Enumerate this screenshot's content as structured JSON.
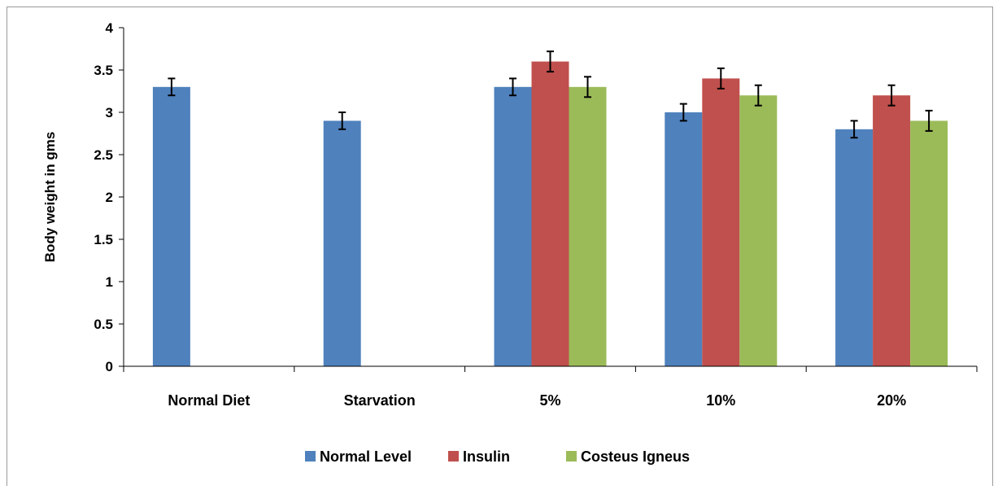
{
  "chart_data": {
    "type": "bar",
    "title": "",
    "xlabel": "",
    "ylabel": "Body weight in gms",
    "ylim": [
      0,
      4
    ],
    "yticks": [
      "0",
      "0.5",
      "1",
      "1.5",
      "2",
      "2.5",
      "3",
      "3.5",
      "4"
    ],
    "grid": false,
    "legend_position": "bottom",
    "categories": [
      "Normal Diet",
      "Starvation",
      "5%",
      "10%",
      "20%"
    ],
    "series": [
      {
        "name": "Normal Level",
        "color": "#4f81bd",
        "values": [
          3.3,
          2.9,
          3.3,
          3.0,
          2.8
        ],
        "errors": [
          0.1,
          0.1,
          0.1,
          0.1,
          0.1
        ]
      },
      {
        "name": "Insulin",
        "color": "#c0504d",
        "values": [
          null,
          null,
          3.6,
          3.4,
          3.2
        ],
        "errors": [
          null,
          null,
          0.12,
          0.12,
          0.12
        ]
      },
      {
        "name": "Costeus Igneus",
        "color": "#9bbb59",
        "values": [
          null,
          null,
          3.3,
          3.2,
          2.9
        ],
        "errors": [
          null,
          null,
          0.12,
          0.12,
          0.12
        ]
      }
    ]
  }
}
